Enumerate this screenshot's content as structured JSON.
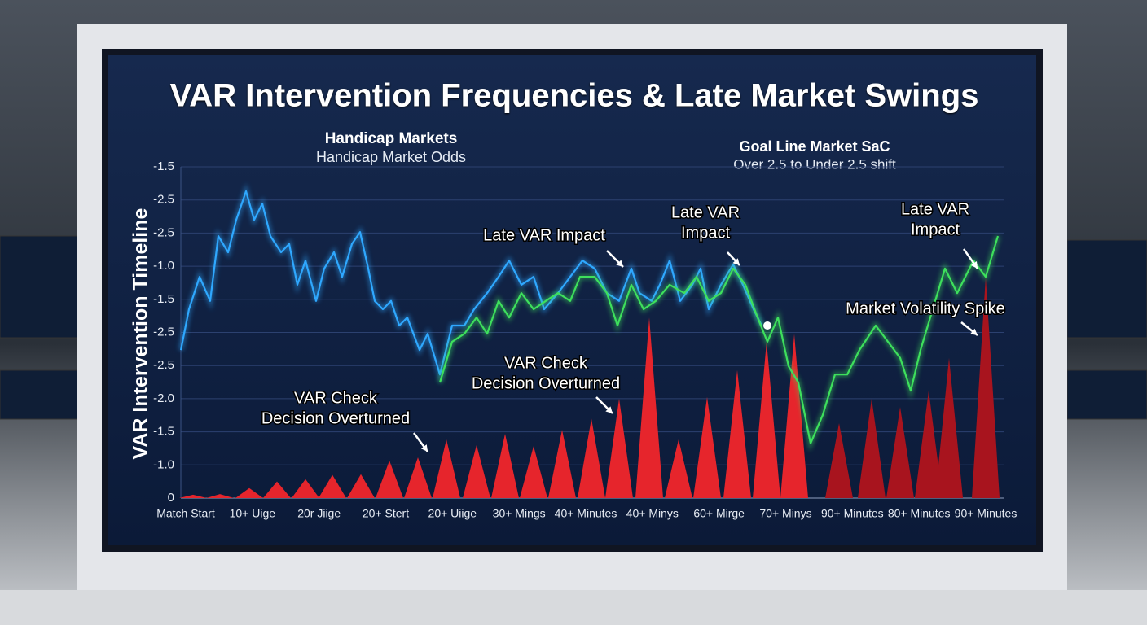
{
  "chart_data": {
    "type": "line",
    "title": "VAR Intervention Frequencies & Late Market Swings",
    "subtitle_left": [
      "Handicap Markets",
      "Handicap Market Odds"
    ],
    "subtitle_right": [
      "Goal Line Market SaC",
      "Over 2.5 to Under 2.5 shift"
    ],
    "y_axis_label": "VAR Intervention Timeline",
    "categories": [
      "Match Start",
      "10+ Uige",
      "20r Jiige",
      "20+ Stert",
      "20+ Uiige",
      "30+ Mings",
      "40+ Minutes",
      "40+ Minys",
      "60+ Mirge",
      "70+ Minys",
      "90+ Minutes",
      "80+ Minutes",
      "90+ Minutes"
    ],
    "xlim": [
      0,
      1010
    ],
    "ylim": [
      0,
      10
    ],
    "yticks": [
      0,
      {
        "value": 1,
        "label": "-1.0"
      },
      {
        "value": 2,
        "label": "-1.5"
      },
      {
        "value": 3,
        "label": "-2.0"
      },
      {
        "value": 4,
        "label": "-2.5"
      },
      {
        "value": 5,
        "label": "-2.5"
      },
      {
        "value": 6,
        "label": "-1.5"
      },
      {
        "value": 7,
        "label": "-1.0"
      },
      {
        "value": 8,
        "label": "-2.5"
      },
      {
        "value": 9,
        "label": "-2.5"
      },
      {
        "value": 10,
        "label": "-1.5"
      }
    ],
    "grid": true,
    "series": [
      {
        "type": "line",
        "color": "#2fa8ff",
        "x": [
          0,
          10,
          23,
          36,
          46,
          58,
          68,
          80,
          90,
          100,
          110,
          123,
          133,
          143,
          153,
          166,
          176,
          188,
          198,
          210,
          220,
          230,
          238,
          248,
          258,
          268,
          278,
          293,
          303,
          318,
          333,
          348,
          360,
          376,
          390,
          403,
          418,
          433,
          446,
          463,
          478,
          493,
          508,
          523,
          538,
          553,
          563,
          578,
          588,
          600,
          613,
          628,
          638,
          648,
          663,
          678,
          690,
          703,
          713
        ],
        "values": [
          4.47,
          5.7,
          6.68,
          5.95,
          7.91,
          7.42,
          8.4,
          9.26,
          8.4,
          8.89,
          7.91,
          7.42,
          7.67,
          6.44,
          7.17,
          5.95,
          6.93,
          7.42,
          6.68,
          7.67,
          8.03,
          6.93,
          5.95,
          5.7,
          5.95,
          5.21,
          5.45,
          4.47,
          4.96,
          3.73,
          5.21,
          5.21,
          5.7,
          6.19,
          6.68,
          7.17,
          6.44,
          6.68,
          5.7,
          6.19,
          6.68,
          7.17,
          6.93,
          6.19,
          5.95,
          6.93,
          6.19,
          5.95,
          6.44,
          7.17,
          5.95,
          6.44,
          6.93,
          5.7,
          6.44,
          7.05,
          6.44,
          5.7,
          5.21
        ]
      },
      {
        "type": "line",
        "color": "#3ee05c",
        "x": [
          318,
          333,
          348,
          363,
          376,
          390,
          403,
          418,
          433,
          448,
          463,
          478,
          490,
          508,
          523,
          536,
          553,
          568,
          583,
          600,
          618,
          633,
          648,
          663,
          678,
          693,
          708,
          720,
          733,
          746,
          758,
          773,
          788,
          803,
          818,
          833,
          853,
          868,
          883,
          896,
          908,
          923,
          938,
          953,
          973,
          988,
          1003
        ],
        "values": [
          3.49,
          4.72,
          4.96,
          5.45,
          4.96,
          5.95,
          5.45,
          6.19,
          5.7,
          5.95,
          6.19,
          5.95,
          6.68,
          6.68,
          6.19,
          5.21,
          6.44,
          5.7,
          5.95,
          6.44,
          6.19,
          6.68,
          5.95,
          6.19,
          6.93,
          6.44,
          5.45,
          4.72,
          5.45,
          3.98,
          3.49,
          1.65,
          2.51,
          3.73,
          3.73,
          4.47,
          5.21,
          4.72,
          4.23,
          3.24,
          4.47,
          5.7,
          6.93,
          6.19,
          7.17,
          6.68,
          7.91
        ]
      },
      {
        "type": "spike",
        "color": "#e6252c",
        "x": [
          15,
          48,
          84,
          118,
          153,
          186,
          221,
          256,
          291,
          326,
          363,
          398,
          433,
          468,
          504,
          538,
          575,
          611,
          646,
          683,
          719,
          753
        ],
        "values": [
          0.1,
          0.12,
          0.3,
          0.5,
          0.57,
          0.7,
          0.72,
          1.13,
          1.23,
          1.77,
          1.6,
          1.94,
          1.57,
          2.06,
          2.4,
          3.0,
          5.45,
          1.77,
          3.05,
          3.86,
          4.72,
          4.95
        ]
      },
      {
        "type": "spike",
        "color": "#a8141e",
        "x": [
          808,
          848,
          883,
          918,
          943,
          988
        ],
        "values": [
          2.26,
          3.0,
          2.75,
          3.24,
          4.23,
          6.68
        ]
      }
    ],
    "annotations": [
      {
        "lines": [
          "Late VAR Impact"
        ]
      },
      {
        "lines": [
          "Late VAR",
          "Impact"
        ]
      },
      {
        "lines": [
          "Late VAR",
          "Impact"
        ]
      },
      {
        "lines": [
          "Market Volatility Spike"
        ]
      },
      {
        "lines": [
          "VAR Check",
          "Decision Overturned"
        ]
      },
      {
        "lines": [
          "VAR Check",
          "Decision Overturned"
        ]
      }
    ]
  }
}
